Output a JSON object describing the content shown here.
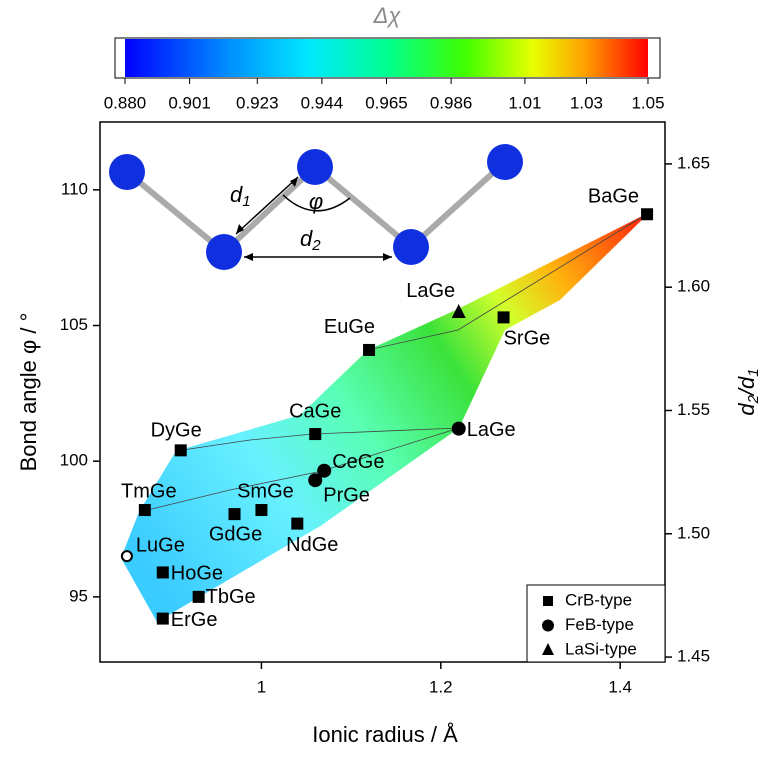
{
  "chart_data": {
    "type": "scatter",
    "xlabel": "Ionic radius / Å",
    "ylabel": "Bond angle φ / °",
    "y2label": [
      "d",
      "2",
      "/d",
      "1"
    ],
    "xlim": [
      0.82,
      1.45
    ],
    "xticks": [
      1.0,
      1.2,
      1.4
    ],
    "ylim": [
      92.6,
      112.5
    ],
    "yticks": [
      95,
      100,
      105,
      110
    ],
    "y2lim": [
      1.448,
      1.667
    ],
    "y2ticks": [
      {
        "value": 1.45,
        "label": "1.45"
      },
      {
        "value": 1.5,
        "label": "1.50"
      },
      1.55,
      {
        "value": 1.6,
        "label": "1.60"
      },
      1.65
    ],
    "colorbar": {
      "title": "Δχ",
      "clim": [
        0.88,
        1.05
      ],
      "ticks": [
        {
          "value": 0.88,
          "label": "0.880"
        },
        0.901,
        0.923,
        0.944,
        0.965,
        0.986,
        1.01,
        1.03,
        1.05
      ]
    },
    "inset": {
      "bond1": [
        "d",
        "1"
      ],
      "bond2": [
        "d",
        "2"
      ],
      "angle": "φ"
    },
    "legend": "lower right",
    "series": [
      {
        "name": "CrB-type",
        "marker": "square",
        "color": "#000000",
        "x": [
          1.43,
          1.27,
          1.12,
          1.06,
          0.91,
          0.87,
          1.0,
          0.97,
          1.04,
          0.89,
          0.93,
          0.89
        ],
        "values": [
          109.1,
          105.3,
          104.1,
          101.0,
          100.4,
          98.2,
          98.2,
          98.05,
          97.7,
          95.9,
          95.0,
          94.2
        ],
        "labels": [
          "BaGe",
          "SrGe",
          "EuGe",
          "CaGe",
          "DyGe",
          "TmGe",
          "SmGe",
          "GdGe",
          "NdGe",
          "HoGe",
          "TbGe",
          "ErGe"
        ]
      },
      {
        "name": "FeB-type",
        "marker": "circle",
        "color": "#000000",
        "x": [
          1.22,
          1.07,
          1.06
        ],
        "values": [
          101.2,
          99.65,
          99.3
        ],
        "labels": [
          "LaGe",
          "CeGe",
          "PrGe"
        ]
      },
      {
        "name": "LaSi-type",
        "marker": "triangle",
        "color": "#000000",
        "x": [
          1.22
        ],
        "values": [
          105.5
        ],
        "labels": [
          "LaGe"
        ]
      }
    ],
    "open_points": {
      "marker": "open-circle",
      "x": [
        0.85
      ],
      "values": [
        96.5
      ],
      "labels": [
        "LuGe"
      ]
    }
  }
}
